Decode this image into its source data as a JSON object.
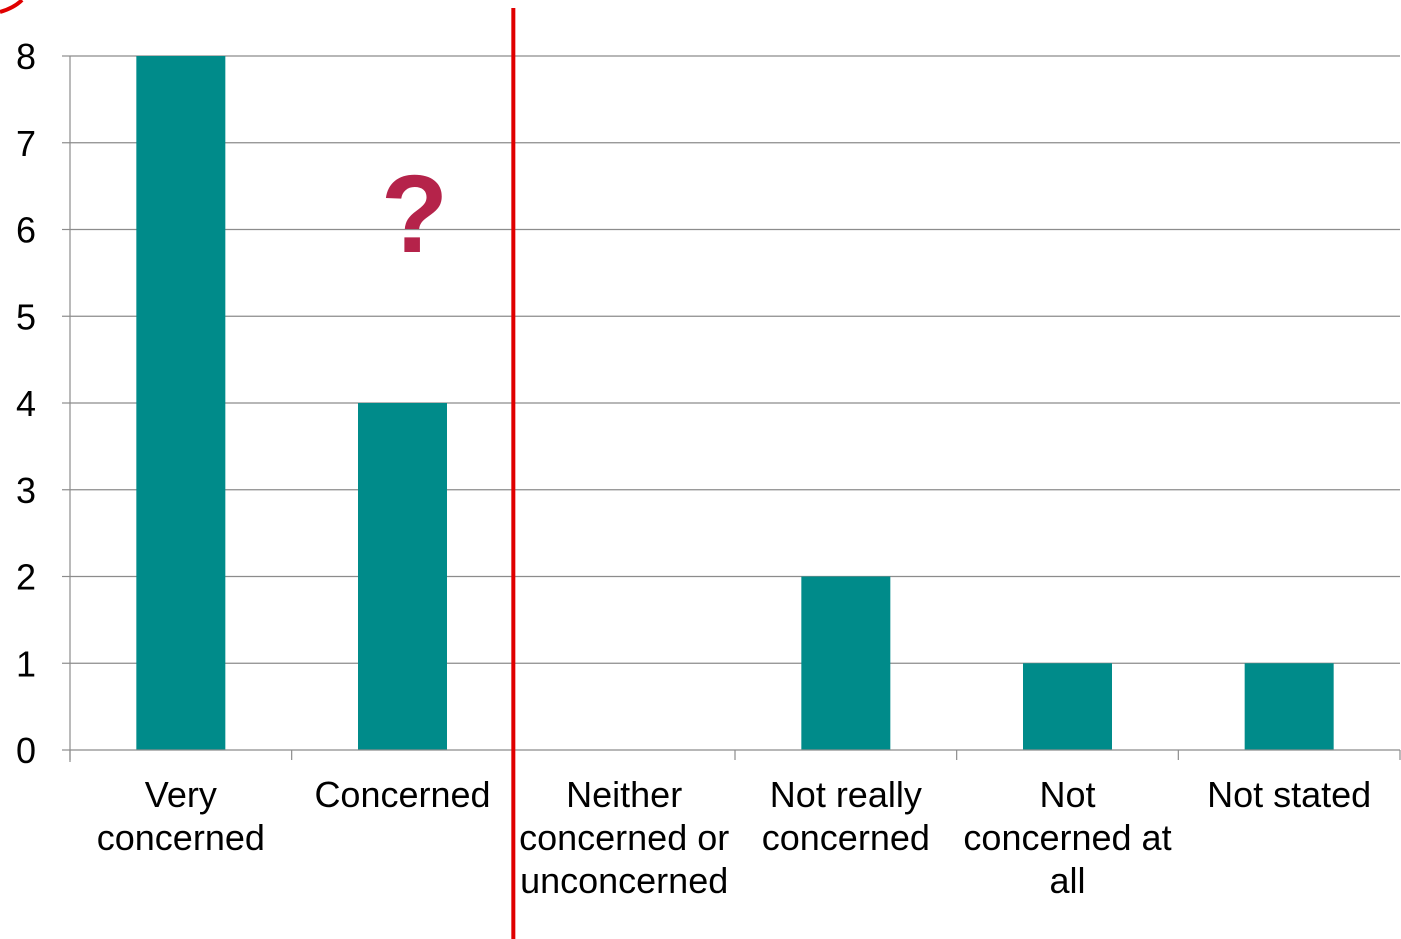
{
  "chart_data": {
    "type": "bar",
    "categories": [
      [
        "Very",
        "concerned"
      ],
      [
        "Concerned"
      ],
      [
        "Neither",
        "concerned or",
        "unconcerned"
      ],
      [
        "Not really",
        "concerned"
      ],
      [
        "Not",
        "concerned at",
        "all"
      ],
      [
        "Not stated"
      ]
    ],
    "values": [
      8,
      4,
      0,
      2,
      1,
      1
    ],
    "ylim": [
      0,
      8
    ],
    "yticks": [
      "0",
      "1",
      "2",
      "3",
      "4",
      "5",
      "6",
      "7",
      "8"
    ],
    "grid": true,
    "legend": "none",
    "annotation": {
      "text": "?",
      "color": "#b5234a"
    },
    "divider": {
      "between_categories": [
        1,
        2
      ],
      "color": "#e00000"
    }
  },
  "colors": {
    "bar": "#008b8a",
    "grid": "#8c8c8c",
    "divider": "#e00000",
    "circle_mark": "#e00000"
  }
}
